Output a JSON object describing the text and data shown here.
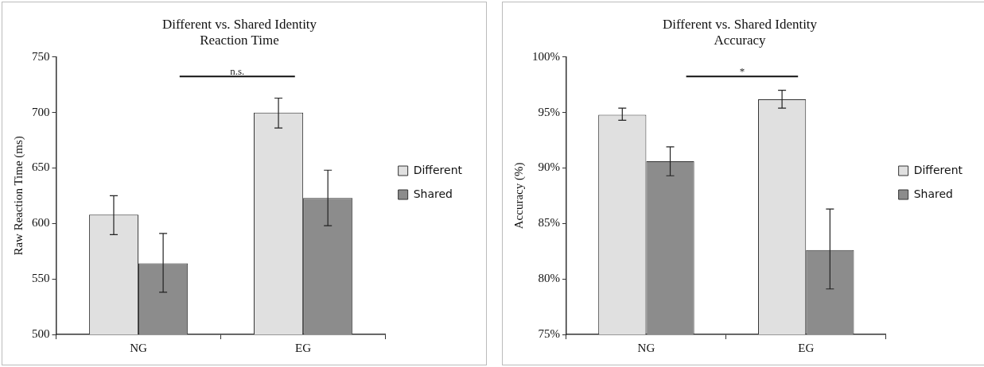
{
  "chart_data": [
    {
      "type": "bar",
      "title": "Different vs. Shared Identity\nReaction Time",
      "ylabel": "Raw Reaction Time (ms)",
      "categories": [
        "NG",
        "EG"
      ],
      "series": [
        {
          "name": "Different",
          "color": "#e0e0e0",
          "values": [
            608,
            700
          ],
          "errors": [
            [
              590,
              625
            ],
            [
              686,
              713
            ]
          ]
        },
        {
          "name": "Shared",
          "color": "#8c8c8c",
          "values": [
            564,
            623
          ],
          "errors": [
            [
              538,
              591
            ],
            [
              598,
              648
            ]
          ]
        }
      ],
      "ylim": [
        500,
        750
      ],
      "yticks": [
        500,
        550,
        600,
        650,
        700,
        750
      ],
      "grid": false,
      "legend": "right",
      "annotations": [
        "n.s."
      ]
    },
    {
      "type": "bar",
      "title": "Different vs. Shared Identity\nAccuracy",
      "ylabel": "Accuracy (%)",
      "categories": [
        "NG",
        "EG"
      ],
      "series": [
        {
          "name": "Different",
          "color": "#e0e0e0",
          "values": [
            94.8,
            96.2
          ],
          "errors": [
            [
              94.3,
              95.4
            ],
            [
              95.4,
              97.0
            ]
          ]
        },
        {
          "name": "Shared",
          "color": "#8c8c8c",
          "values": [
            90.6,
            82.6
          ],
          "errors": [
            [
              89.3,
              91.9
            ],
            [
              79.1,
              86.3
            ]
          ]
        }
      ],
      "ylim": [
        75,
        100
      ],
      "yticks": [
        {
          "value": 75,
          "label": "75%"
        },
        {
          "value": 80,
          "label": "80%"
        },
        {
          "value": 85,
          "label": "85%"
        },
        {
          "value": 90,
          "label": "90%"
        },
        {
          "value": 95,
          "label": "95%"
        },
        {
          "value": 100,
          "label": "100%"
        }
      ],
      "grid": false,
      "legend": "right",
      "annotations": [
        "*"
      ]
    }
  ]
}
